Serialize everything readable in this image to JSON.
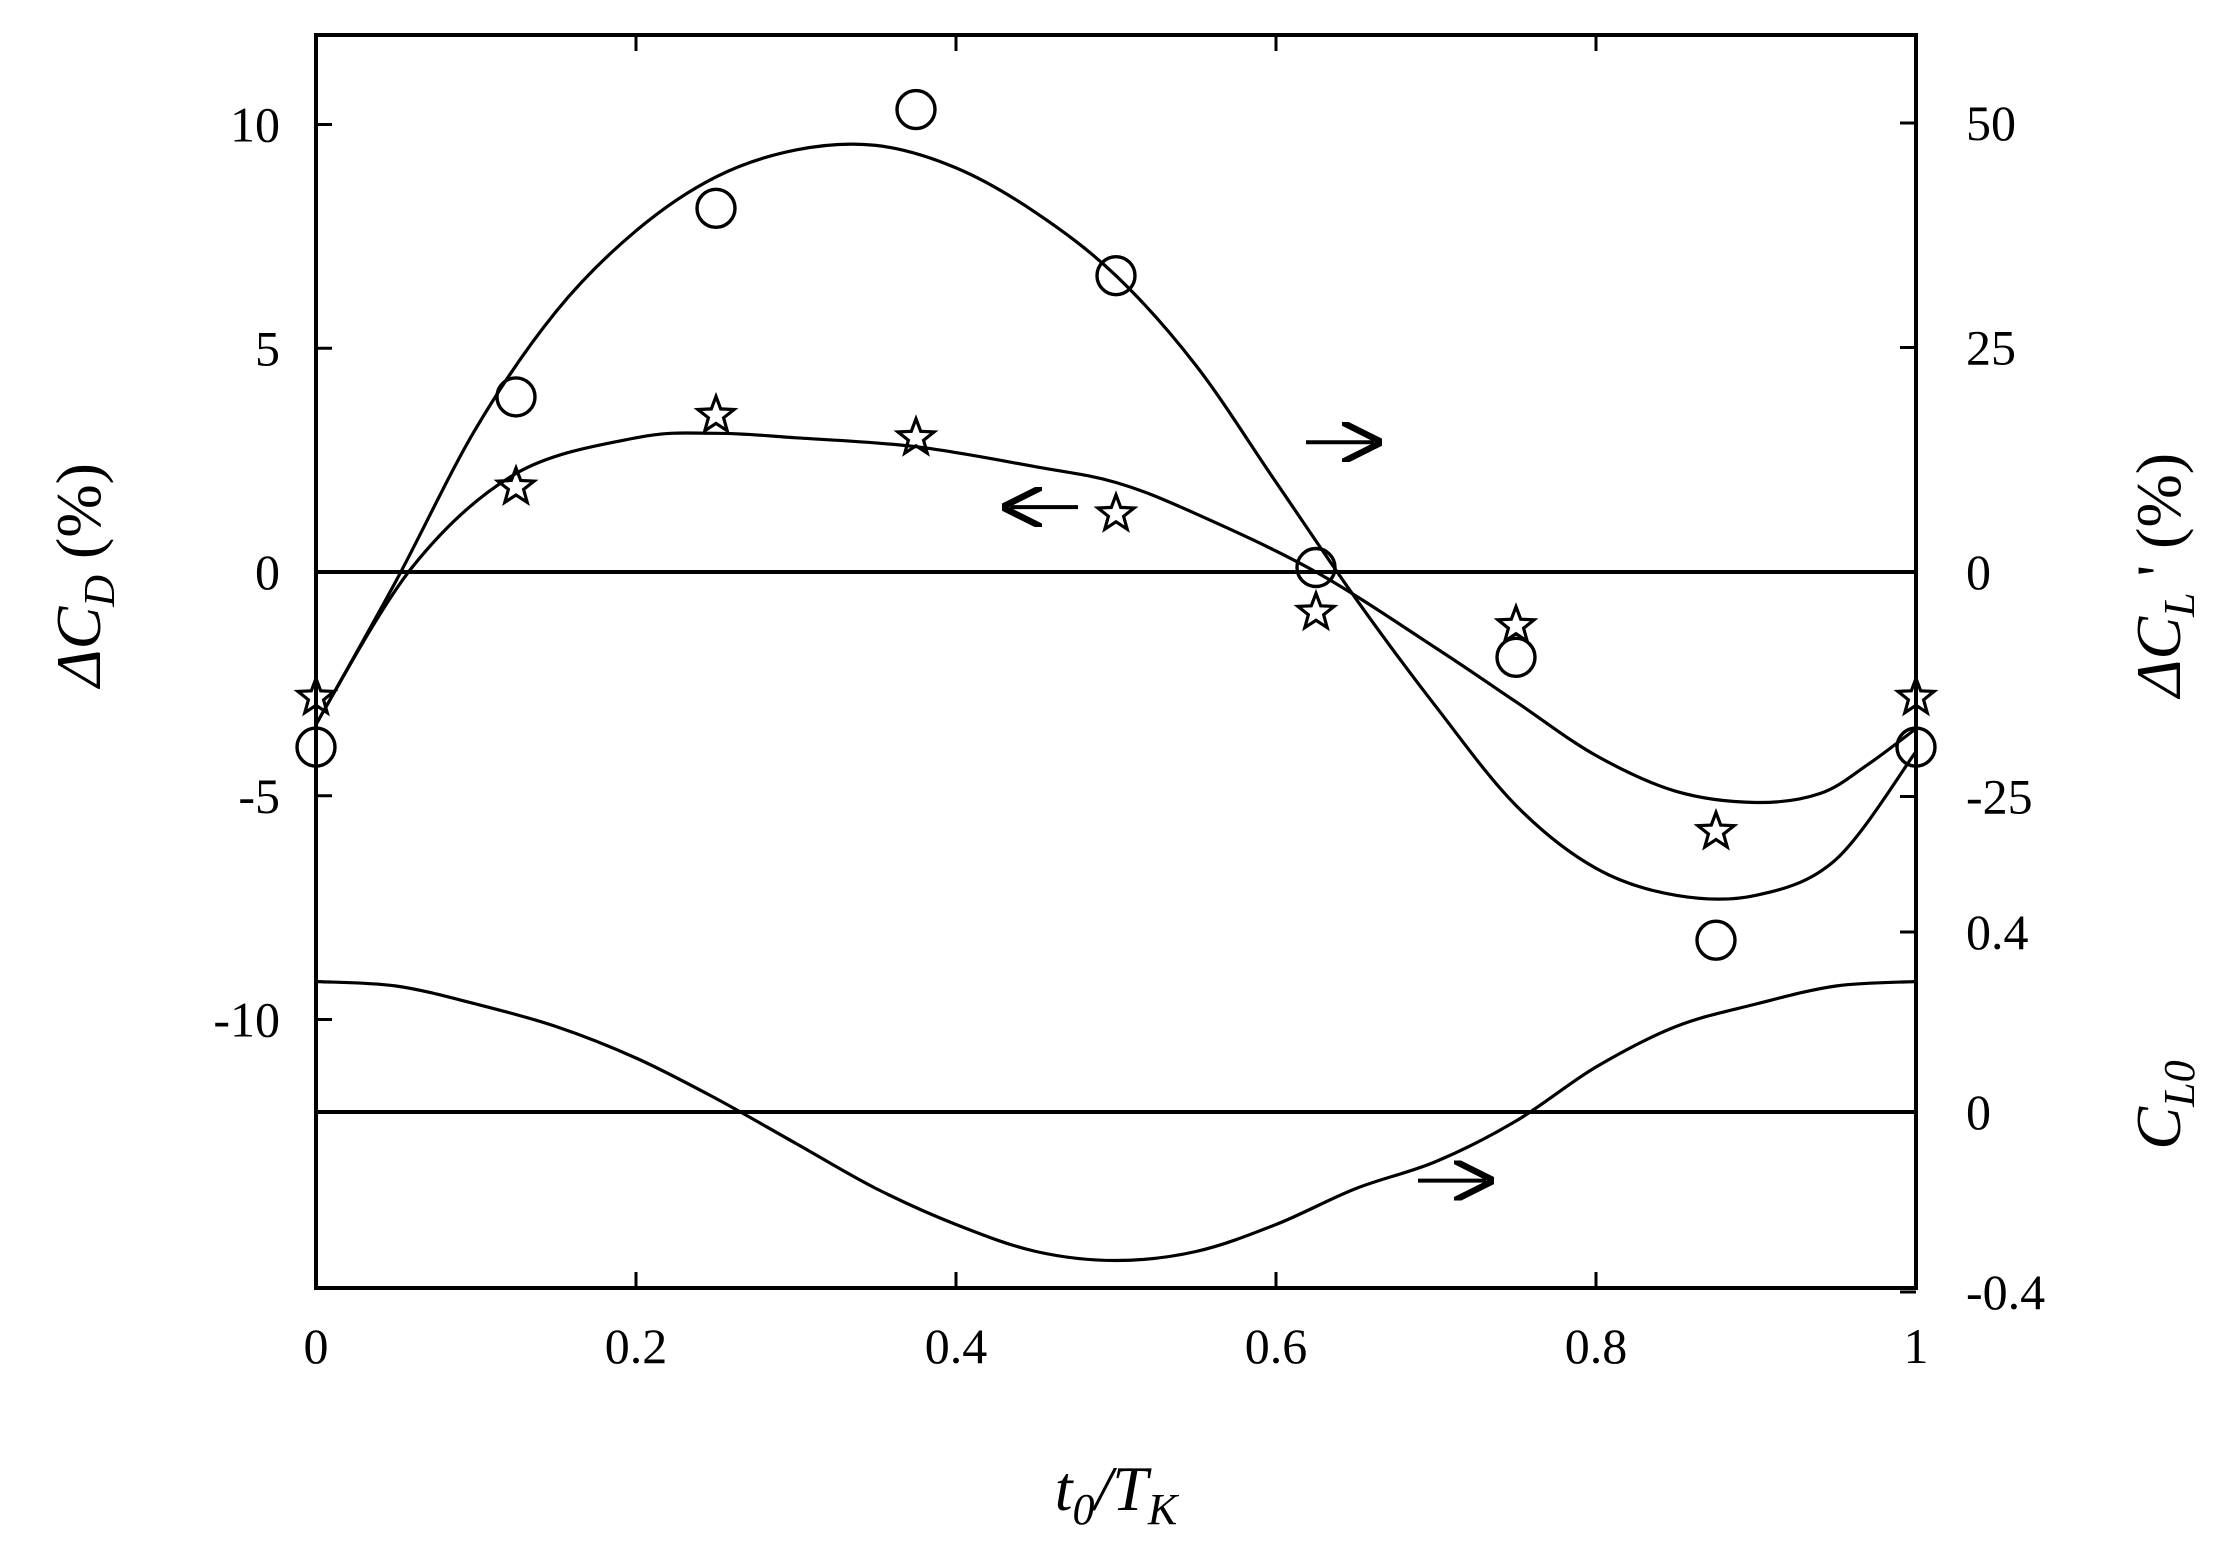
{
  "chart_data": {
    "type": "scatter",
    "x_axis": {
      "label_main": "t",
      "label_sub0": "0",
      "label_sep": "/T",
      "label_sub1": "K",
      "range": [
        0,
        1
      ],
      "ticks": [
        0,
        0.2,
        0.4,
        0.6,
        0.8,
        1
      ],
      "tick_labels": [
        "0",
        "0.2",
        "0.4",
        "0.6",
        "0.8",
        "1"
      ]
    },
    "left_axis": {
      "label_prefix": "ΔC",
      "label_sub": "D",
      "label_suffix": " (%)",
      "range": [
        -16,
        12
      ],
      "ticks": [
        -10,
        -5,
        0,
        5,
        10
      ],
      "tick_labels": [
        "-10",
        "-5",
        "0",
        "5",
        "10"
      ]
    },
    "right_axis_upper": {
      "label_prefix": "ΔC",
      "label_sub": "L",
      "label_suffix": " ' (%)",
      "ticks": [
        -25,
        0,
        25,
        50
      ],
      "tick_labels": [
        "-25",
        "0",
        "25",
        "50"
      ]
    },
    "right_axis_lower": {
      "label_prefix": "C",
      "label_sub": "L0",
      "ticks": [
        -0.4,
        0,
        0.4
      ],
      "tick_labels": [
        "-0.4",
        "0",
        "0.4"
      ]
    },
    "series": [
      {
        "marker": "star",
        "axis": "left",
        "x": [
          0,
          0.125,
          0.25,
          0.375,
          0.5,
          0.625,
          0.75,
          0.875,
          1.0
        ],
        "y": [
          -2.8,
          1.9,
          3.5,
          3.0,
          1.3,
          -0.9,
          -1.2,
          -5.8,
          -2.8
        ],
        "fit_x": [
          0,
          0.06,
          0.125,
          0.2,
          0.25,
          0.3,
          0.375,
          0.45,
          0.5,
          0.55,
          0.625,
          0.7,
          0.75,
          0.8,
          0.85,
          0.9,
          0.94,
          0.97,
          1.0
        ],
        "fit_y": [
          -3.4,
          0.1,
          2.2,
          3.0,
          3.1,
          3.0,
          2.8,
          2.35,
          2.0,
          1.3,
          0.0,
          -1.7,
          -2.9,
          -4.1,
          -4.9,
          -5.15,
          -4.95,
          -4.3,
          -3.5
        ]
      },
      {
        "marker": "circle",
        "axis": "right_upper",
        "x": [
          0,
          0.125,
          0.25,
          0.375,
          0.5,
          0.625,
          0.75,
          0.875,
          1.0
        ],
        "y": [
          -19.5,
          19.5,
          40.5,
          51.5,
          33.0,
          0.5,
          -9.5,
          -41.0,
          -19.5
        ],
        "fit_x": [
          0,
          0.05,
          0.1,
          0.15,
          0.2,
          0.25,
          0.3,
          0.35,
          0.4,
          0.45,
          0.5,
          0.55,
          0.6,
          0.65,
          0.7,
          0.75,
          0.8,
          0.85,
          0.9,
          0.95,
          1.0
        ],
        "fit_y": [
          -17.0,
          -1.0,
          16.0,
          29.0,
          38.0,
          44.0,
          47.0,
          47.5,
          45.0,
          40.0,
          33.0,
          23.0,
          10.0,
          -3.0,
          -15.0,
          -26.0,
          -33.0,
          -36.0,
          -36.0,
          -32.0,
          -20.0
        ]
      },
      {
        "marker": "none",
        "axis": "right_lower",
        "fit_x": [
          0,
          0.05,
          0.1,
          0.15,
          0.2,
          0.25,
          0.3,
          0.35,
          0.4,
          0.45,
          0.5,
          0.55,
          0.6,
          0.65,
          0.7,
          0.75,
          0.8,
          0.85,
          0.9,
          0.95,
          1.0
        ],
        "fit_y": [
          0.29,
          0.28,
          0.24,
          0.19,
          0.12,
          0.03,
          -0.07,
          -0.17,
          -0.25,
          -0.31,
          -0.33,
          -0.31,
          -0.25,
          -0.17,
          -0.11,
          -0.02,
          0.1,
          0.19,
          0.24,
          0.28,
          0.29
        ]
      }
    ],
    "reference_lines": [
      {
        "axis": "left",
        "y": 0
      },
      {
        "axis": "right_lower",
        "y": 0
      }
    ],
    "arrows": [
      {
        "x": 0.64,
        "y": 2.9,
        "direction": "right"
      },
      {
        "x": 0.455,
        "y": 1.45,
        "direction": "left"
      },
      {
        "x": 0.71,
        "y": -13.6,
        "direction": "right"
      }
    ]
  }
}
